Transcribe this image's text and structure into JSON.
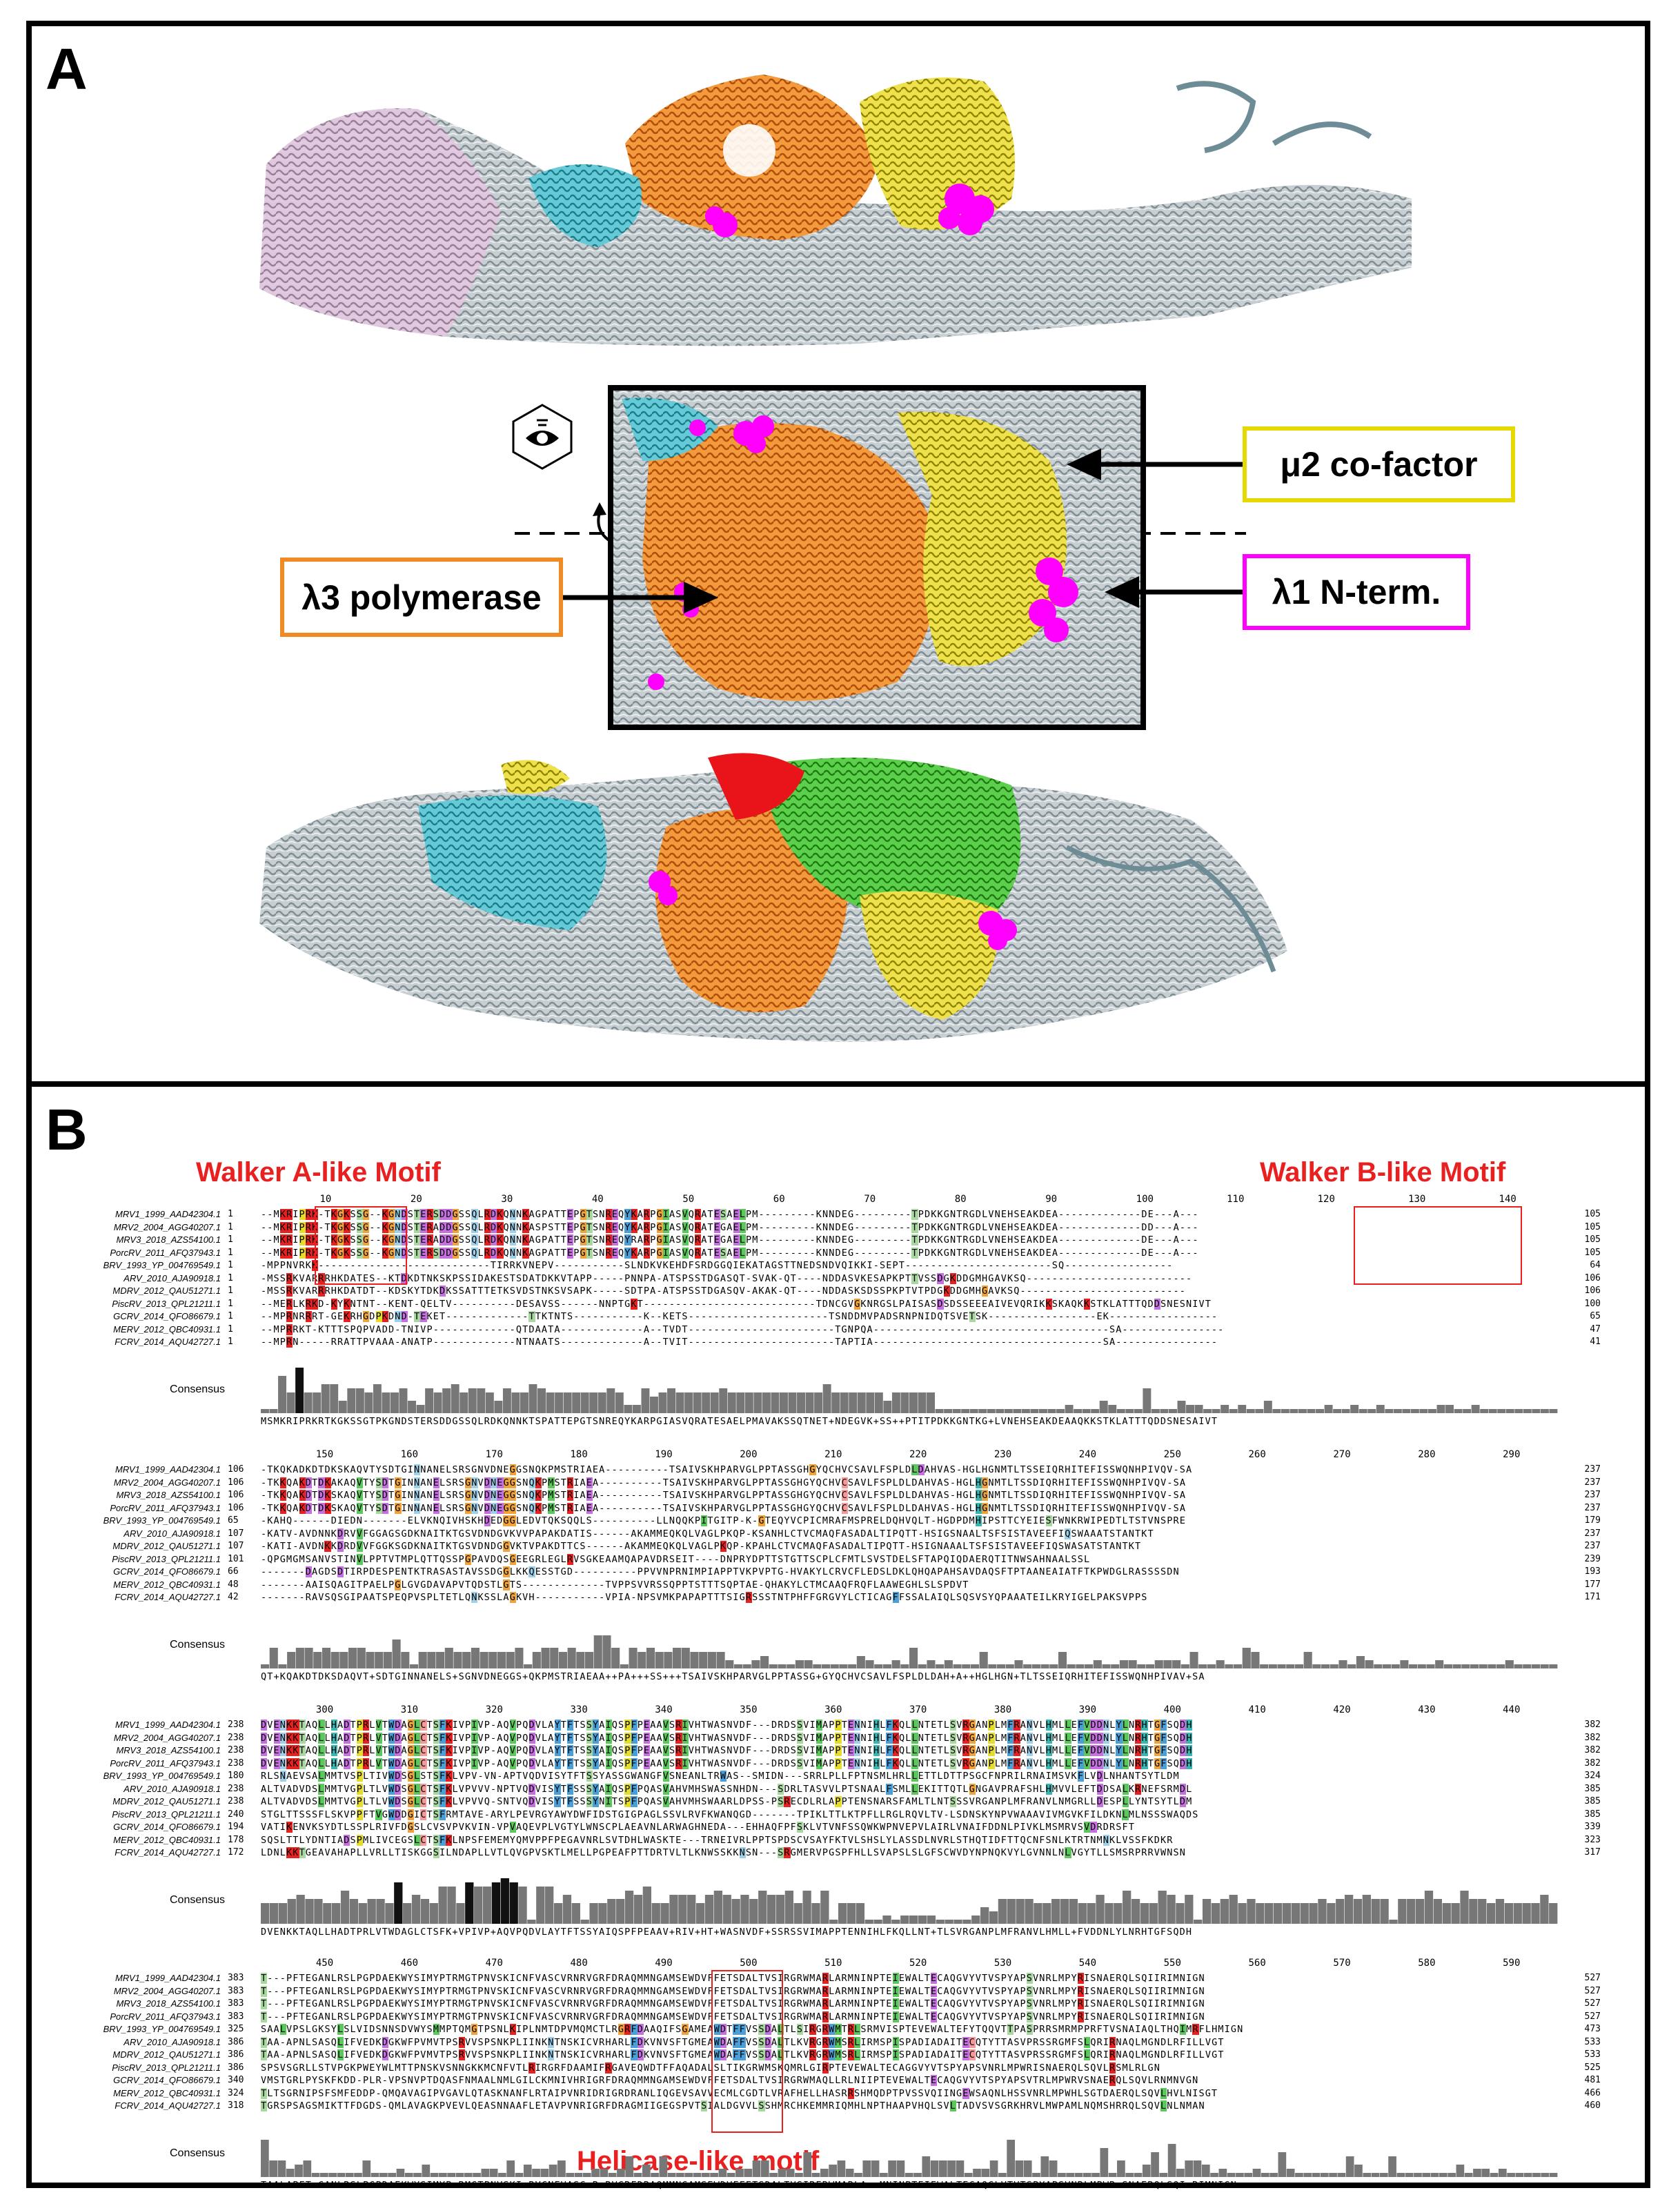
{
  "panel_a": {
    "letter": "A",
    "labels": {
      "mu2": "μ2 co-factor",
      "lambda1": "λ1 N-term.",
      "lambda3": "λ3 polymerase"
    },
    "colors": {
      "mu2": "#e6d800",
      "lambda1": "#ff00ff",
      "lambda3": "#f08a24",
      "cyan": "#3fb8c8",
      "green": "#3cc32a",
      "red": "#e8141a",
      "gray": "#8fa0a6",
      "pink": "#d3a9cf"
    }
  },
  "panel_b": {
    "letter": "B",
    "motifs": {
      "walker_a": "Walker A-like Motif",
      "walker_b": "Walker B-like Motif",
      "helicase": "Helicase-like motif"
    },
    "consensus_label": "Consensus",
    "sequence_names": [
      "MRV1_1999_AAD42304.1",
      "MRV2_2004_AGG40207.1",
      "MRV3_2018_AZS54100.1",
      "PorcRV_2011_AFQ37943.1",
      "BRV_1993_YP_004769549.1",
      "ARV_2010_AJA90918.1",
      "MDRV_2012_QAU51271.1",
      "PiscRV_2013_QPL21211.1",
      "GCRV_2014_QFO86679.1",
      "MERV_2012_QBC40931.1",
      "FCRV_2014_AQU42727.1"
    ],
    "blocks": [
      {
        "ruler": [
          "10",
          "20",
          "30",
          "40",
          "50",
          "60",
          "70",
          "80",
          "90",
          "100",
          "110",
          "120",
          "130",
          "140"
        ],
        "starts": [
          "1",
          "1",
          "1",
          "1",
          "1",
          "1",
          "1",
          "1",
          "1",
          "1",
          "1"
        ],
        "ends": [
          "105",
          "105",
          "105",
          "105",
          "64",
          "106",
          "106",
          "100",
          "65",
          "47",
          "41"
        ],
        "rows": [
          "--MKRIPRK-TKGKSSG--KGNDSTERSDDGSSQLRDKQNNKAGPATTEPGTSNREQYKARPGIASVQRATESAELPM---------KNNDEG---------TPDKKGNTRGDLVNEHSEAKDEA-------------DE---A---",
          "--MKRIPRK-TKGKSSG--KGNDSTERADDGSSQLRDKQNNKASPSTTEPGTSNREQYKARPGIASVQRATEGAELPM---------KNNDEG---------TPDKKGNTRGDLVNEHSEAKDEA-------------DD---A---",
          "--MKRIPRK-TKGKSSG--KGNDSTERADDGSSQLRDKQNNKAGPATTEPGTSNREQYRARPGIASVQRATEGAELPM---------KNNDEG---------TPDKKGNTRGDLVNEHSEAKDEA-------------DE---A---",
          "--MKRIPRK-TKGKSSG--KGNDSTERSDDGSSQLRDKQNNKAGPATTEPGTSNREQYKARPGIASVQRATESAELPM---------KNNDEG---------TPDKKGNTRGDLVNEHSEAKDEA-------------DE---A---",
          "-MPPNVRKK---------------------------TIRRKVNEPV-----------SLNDKVKEHDFSRDGGQIEKATAGSTTNEDSNDVQIKKI-SEPT-----------------------SQ-----------------",
          "-MSSRKVARRRHKDATES--KTDKDTNKSKPSSIDAKESTSDATDKKVTAPP-----PNNPA-ATSPSSTDGASQT-SVAK-QT----NDDASVKESAPKPTTVSSDGKDDGMHGAVKSQ--------------------------",
          "-MSSRKVARRRHKDATDT--KDSKYTDKDKSSATTTETKSVDSTNKSVSAPK-----SDTPA-ATSPSSTDGASQV-AKAK-QT----NDDASKSDSSPKPTVTPDGKDDGMHGAVKSQ--------------------------",
          "--MERLKRKD-KYKNTNT--KENT-QELTV----------DESAVSS------NNPTGKT---------------------------TDNCGVGKNRGSLPAISASDSDSSEEEAIVEVQRIKKSKAQKKSTKLATTTQDDSNESNIVT",
          "--MPRNRRRT-GEKRHGDPKDND-TEKET-------------TTKTNTS-----------K--KETS----------------------TSNDDMVPADSRNPNIDQTSVETSK-----------------EK-----------------",
          "--MPRRKT-KTTTSPQPVADD-TNIVP-------------QTDAATA-------------A--TVDT-----------------------TGNPQA-------------------------------------SA----------------",
          "--MPRN-----RRATTPVAAA-ANATP-------------NTNAATS-------------A--TVIT-----------------------TAPTIA------------------------------------SA----------------"
        ],
        "consensus": "MSMKRIPRKRTKGKSSGTPKGNDSTERSDDGSSQLRDKQNNKTSPATTEPGTSNREQYKARPGIASVQRATESAELPMAVAKSSQTNET+NDEGVK+SS++PTITPDKKGNTKG+LVNEHSEAKDEAAQKKSTKLATTTQDDSNESAIVT"
      },
      {
        "ruler": [
          "150",
          "160",
          "170",
          "180",
          "190",
          "200",
          "210",
          "220",
          "230",
          "240",
          "250",
          "260",
          "270",
          "280",
          "290"
        ],
        "starts": [
          "106",
          "106",
          "106",
          "106",
          "65",
          "107",
          "107",
          "101",
          "66",
          "48",
          "42"
        ],
        "ends": [
          "237",
          "237",
          "237",
          "237",
          "179",
          "237",
          "237",
          "239",
          "193",
          "177",
          "171"
        ],
        "rows": [
          "-TKQKADKDTDKSKAQVTYSDTGINNANELSRSGNVDNEGGSNQKPMSTRIAEA----------TSAIVSKHPARVGLPPTASSGHGYQCHVCSAVLFSPLDLDAHVAS-HGLHGNMTLTSSEIQRHITEFISSWQNHPIVQV-SA",
          "-TKKQAKDTDKAKAQVTYSDTGINNANELSRSGNVDNEGGSNQKPMSTRIAEA----------TSAIVSKHPARVGLPPTASSGHGYQCHVCSAVLFSPLDLDAHVAS-HGLHGNMTLTSSDIQRHITEFISSWQNHPIVQV-SA",
          "-TKKQAKDTDKSKAQVTYSDTGINNANELSRSGNVDNEGGSNQKPMSTRIAEA----------TSAIVSKHPARVGLPPTASSGHGYQCHVCSAVLFSPLDLDAHVAS-HGLHGNMTLTSSDIQRHITEFISSWQNHPIVQV-SA",
          "-TKKQAKDTDKSKAQVTYSDTGINNANELSRSGNVDNEGGSNQKPMSTRIAEA----------TSAIVSKHPARVGLPPTASSGHGYQCHVCSAVLFSPLDLDAHVAS-HGLHGNMTLTSSDIQRHITEFISSWQNHPIVQV-SA",
          "-KAHQ------DIEDN-------ELVKNQIVHSKHDEDGGLEDVTQKSQQLS----------LLNQQKPITGITP-K-GTEQYVCPICMRAFMSPRELDQHVQLT-HGDPDMHIPSTTCYEIESFWNKRWIPEDTLTSTVNSPRE",
          "-KATV-AVDNNKDRVVFGGAGSGDKNAITKTGSVDNDGVKVVPAPAKDATIS------AKAMMEQKQLVAGLPKQP-KSANHLCTVCMAQFASADALTIPQTT-HSIGSNAALTSFSISTAVEEFIQSWAAATSTANTKT",
          "-KATI-AVDNKKDRDVVFGGKSGDKNAITKTGSVDNDGGVKTVPAKDTTCS------AKAMMEQKQLVAGLPKQP-KPAHLCTVCMAQFASADALTIPQTT-HSIGNAAALTSFSISTAVEEFIQSWASATSTANTKT",
          "-QPGMGMSANVSTINVLPPTVTMPLQTTQSSPGPAVDQSGEEGRLEGLRVSGKEAAMQAPAVDRSEIT----DNPRYDPTTSTGTTSCPLCFMTLSVSTDELSFTAPQIQDAERQTITNWSAHNAALSSL",
          "-------DAGDSDTIRPDESPENTKTRASASTAVSSDGGLKKQESSTGD----------PPVVNPRNIMPIAPPTVKPVPTG-HVAKYLCRVCFLEDSLDKLQHQAPAHSAVDAQSFTPTAANEAIATFTKPWDGLRASSSSDN",
          "-------AAISQAGITPAELPGLGVGDAVAPVTQDSTLGTS-------------TVPPSVVRSSQPPTSTTTSQPTAE-QHAKYLCTMCAAQFRQFLAAWEGHLSLSPDVT",
          "-------RAVSQSGIPAATSPEQPVSPLTETLQNKSSLAGKVH-----------VPIA-NPSVMKPAPAPTTTSIGRSSSTNTPHFFGRGVYLCTICAGFFSSALAIQLSQSVSYQPAAATEILKRYIGELPAKSVPPS"
        ],
        "consensus": "QT+KQAKDTDKSDAQVT+SDTGINNANELS+SGNVDNEGGS+QKPMSTRIAEAA++PA+++SS+++TSAIVSKHPARVGLPPTASSG+GYQCHVCSAVLFSPLDLDAH+A++HGLHGN+TLTSSEIQRHITEFISSWQNHPIVAV+SA"
      },
      {
        "ruler": [
          "300",
          "310",
          "320",
          "330",
          "340",
          "350",
          "360",
          "370",
          "380",
          "390",
          "400",
          "410",
          "420",
          "430",
          "440"
        ],
        "starts": [
          "238",
          "238",
          "238",
          "238",
          "180",
          "238",
          "238",
          "240",
          "194",
          "178",
          "172"
        ],
        "ends": [
          "382",
          "382",
          "382",
          "382",
          "324",
          "385",
          "385",
          "385",
          "339",
          "323",
          "317"
        ],
        "rows": [
          "DVENKKTAQLLHADTPRLVTWDAGLCTSFKIVPIVP-AQVPQDVLAYTFTSSYAIQSPFPEAAVSRIVHTWASNVDF---DRDSSVIMAPPTENNIHLFKQLLNTETLSVRGANPLMFRANVLHMLLEFVDDNLYLNRHTGFSQDH",
          "DVENKKTAQLLHADTPRLVTWDAGLCTSFKIVPIVP-AQVPQDVLAYTFTSSYAIQSPFPEAAVSRIVHTWASNVDF---DRDSSVIMAPPTENNIHLFKQLLNTETLSVRGANPLMFRANVLHMLLEFVDDNLYLNRHTGFSQDH",
          "DVENKKTAQLLHADTPRLVTWDAGLCTSFKIVPIVP-AQVPQDVLAYTFTSSYAIQSPFPEAAVSRIVHTWASNVDF---DRDSSVIMAPPTENNIHLFKQLLNTETLSVRGANPLMFRANVLHMLLEFVDDNLYLNRHTGFSQDH",
          "DVENKKTAQLLHADTPRLVTWDAGLCTSFKIVPIVP-AQVPQDVLAYTFTSSYAIQSPFPEAAVSRIVHTWASNVDF---DRDSSVIMAPPTENNIHLFKQLLNTETLSVRGANPLMFRANVLHMLLEFVDDNLYLNRHTGFSQDH",
          "RLSNAEVSALMMTVSPLTIVWDSGLSTSFKLVPV-VN-APTVQDVISYTFTSSYASSGWANGFVSNEANLTRWAS--SMIDN---SRRLPLLFPTNSMLHRLLETTLDTTPSGCFNPRILRNAIMSVKFLVDLNHANTSYTLDM",
          "ALTVADVDSLMMTVGPLTLVWDSGLCTSFKLVPVVV-NPTVQDVISYTFSSSYAIQSPFPQASVAHVMHSWASSNHDN---SDRLTASVVLPTSNAALFSMLLEKITTQTLGNGAVPRAFSHLHMVVLEFTDDSALKRNEFSRMDL",
          "ALTVADVDSLMMTVGPLTLVWDSGLCTSFKLVPVVQ-SNTVQDVISYTFSSSYNITSPFPQASVAHVMHSWAARLDPSS-PSRECDLRLAPPTENSNARSFAMLTLNTSSSVRGANPLMFRANVLNMGRLLDESPLLYNTSYTLDM",
          "STGLTTSSSFLSKVPPFTVGWDDGICTSFRMTAVE-ARYLPEVRGYAWYDWFIDSTGIGPAGLSSVLRVFKWANQGD-------TPIKLTTLKTPFLLRGLRQVLTV-LSDNSKYNPVWAAAVIVMGVKFILDKNLMLNSSSWAQDS",
          "VATIKENVKSYDTLSSPLRIVFDGSLCVSVPVKVIN-VPVAQEVPLVGTYLWNSCPLAEAVNLARWAGHNEDA---EHHAQFPFSKLVTVNFSSQWKWPNVEPVLAIRLVNAIFDDNLPIVKLMSMRVSVDRDRSFT",
          "SQSLTTLYDNTIADSPMLIVCEGSLCTSFKLNPSFEMEMYQMVPPFPEGAVNRLSVTDHLWASKTE---TRNEIVRLPPTSPDSCVSAYFKTVLSHSLYLASSDLNVRLSTHQTIDFTTQCNFSNLKTRTNMNKLVSSFKDKR",
          "LDNLKKTGEAVAHAPLLVRLLTISKGGSILNDAPLLVTLQVGPVSKTLMELLPGPEAFPTTDRTVLTLKNWSSKKNSN---SRGMERVPGSPFHLLSVAPSLSLGFSCWVDYNPNQKVYLGVNNLNLVGYTLLSMSRPRRVWNSN"
        ],
        "consensus": "DVENKKTAQLLHADTPRLVTWDAGLCTSFK+VPIVP+AQVPQDVLAYTFTSSYAIQSPFPEAAV+RIV+HT+WASNVDF+SSRSSVIMAPPTENNIHLFKQLLNT+TLSVRGANPLMFRANVLHMLL+FVDDNLYLNRHTGFSQDH"
      },
      {
        "ruler": [
          "450",
          "460",
          "470",
          "480",
          "490",
          "500",
          "510",
          "520",
          "530",
          "540",
          "550",
          "560",
          "570",
          "580",
          "590"
        ],
        "starts": [
          "383",
          "383",
          "383",
          "383",
          "325",
          "386",
          "386",
          "386",
          "340",
          "324",
          "318"
        ],
        "ends": [
          "527",
          "527",
          "527",
          "527",
          "473",
          "533",
          "533",
          "525",
          "481",
          "466",
          "460"
        ],
        "rows": [
          "T---PFTEGANLRSLPGPDAEKWYSIMYPTRMGTPNVSKICNFVASCVRNRVGRFDRAQMMNGAMSEWDVFFETSDALTVSIRGRWMARLARMNINPTEIEWALTECAQGVYVTVSPYAPSVNRLMPYRISNAERQLSQIIRIMNIGN",
          "T---PFTEGANLRSLPGPDAEKWYSIMYPTRMGTPNVSKICNFVASCVRNRVGRFDRAQMMNGAMSEWDVFFETSDALTVSIRGRWMARLARMNINPTEIEWALTECAQGVYVTVSPYAPSVNRLMPYRISNAERQLSQIIRIMNIGN",
          "T---PFTEGANLRSLPGPDAEKWYSIMYPTRMGTPNVSKICNFVASCVRNRVGRFDRAQMMNGAMSEWDVFFETSDALTVSIRGRWMARLARMNINPTEIEWALTECAQGVYVTVSPYAPSVNRLMPYRISNAERQLSQIIRIMNIGN",
          "T---PFTEGANLRSLPGPDAEKWYSIMYPTRMGTPNVSKICNFVASCVRNRVGRFDRAQMMNGAMSEWDVFFETSDALTVSIRGRWMARLARMNINPTEIEWALTECAQGVYVTVSPYAPSVNRLMPYRISNAERQLSQIIRIMNIGN",
          "SAALVPSLGKSYLSLVIDSNNSDVWYSMMPTQMGTPSNLKIPLNMTDPVMQMCTLRGRFDAAQIFSGAMEAWDTFFVSSDALTLSIRGRWMTRLSRMVISPTEVEWALTEFYTQQVTTPASPRRSMRMPPRFTVSNAIAQLTHQIMRFLHMIGN",
          "TAA-APNLSASQLIFVEDKDGKWFPVMVTPSRVVSPSNKPLIINKNTNSKICVRHARLFDKVNVSFTGMEAWDAFFVSSDALTLKVRGRWMSRLIRMSPISPADIADAITECQTYTTASVPRSSRGMFSLQRIRNAQLMGNDLRFILLVGT",
          "TAA-APNLSASQLIFVEDKDGKWFPVMVTPSRVVSPSNKPLIINKNTNSKICVRHARLFDKVNVSFTGMEAWDAFFVSSDALTLKVRGRWMSRLIRMSPISPADIADAITECQTYTTASVPRSSRGMFSLQRIRNAQLMGNDLRFILLVGT",
          "SPSVSGRLLSTVPGKPWEYWLMTTPNSKVSNNGKKMCNFVTLRIRGRFDAAMIFRGAVEQWDTFFAQADALSLTIKGRWMSKQMRLGIRPTEVEWALTECAGGVYVTSPYAPSVNRLMPWRISNAERQLSQVLRSMLRLGN",
          "VMSTGRLPYSKFKDD-PLR-VPSNVPTDQASFNMAALNMLGILCKMNIVHRIGRFDRAQMMNGAMSEWDVFFETSDALTVSIRGRWMAQLLRLNIIPTEVEWALTECAQGVYVTSPYAPSVTRLMPWRVSNAERQLSQVLRNMNVGN",
          "TLTSGRNIPSFSMFEDDP-QMQAVAGIPVGAVLQTASKNANFLRTAIPVNRIDRIGRDRANLIQGEVSAVVECMLCGDTLVRAFHELLHASRRSHMQDPTPVSSVQIINGEWSAQNLHSSVNRLMPWHLSGTDAERQLSQVLHVLNISGT",
          "TGRSPSAGSMIKTTFDGDS-QMLAVAGKPVEVLQEASNNAAFLETAVPVNRIGRFDRAGMIIGEGSPVTSIALDGVVLSSHMRCHKEMMRIQMHLNPTHAAPVHQLSVLTADVSVSGRKHRVLMWPAMLNQMSHRRQLSQVLNLNMAN"
        ],
        "consensus": "TAALAPFT+GANLRSLPGPDAEKWYSIMYP+RMGTPNVSKI+RVCNFVASC+R+RVGRFDRAQMMNGAMSEWDVFFETSDALTVSIRERWMARLA++MNINPTEIEWALTECAQGLVTVTSPYAPSVNRLMPWR+SNAERQLSQI+RIMNIGN"
      }
    ]
  }
}
